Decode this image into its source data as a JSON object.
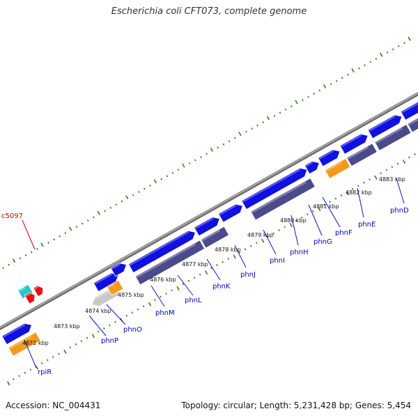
{
  "title": "Escherichia coli CFT073, complete genome",
  "footer": {
    "accession": "Accession: NC_004431",
    "summary": "Topology: circular; Length: 5,231,428 bp; Genes: 5,454"
  },
  "colors": {
    "backbone": "#8c8c8c",
    "gene_forward": "#1010e0",
    "gene_reverse": "#4a4a8c",
    "gene_orange": "#f39a1a",
    "gene_grey": "#c8c8c8",
    "gene_cyan": "#22c8cc",
    "gene_red": "#e81010",
    "tick": "#2e7d1a",
    "gene_label": "#0000cc",
    "red_label": "#cc0000"
  },
  "ticks": [
    "4872 kbp",
    "4873 kbp",
    "4874 kbp",
    "4875 kbp",
    "4876 kbp",
    "4877 kbp",
    "4878 kbp",
    "4879 kbp",
    "4880 kbp",
    "4881 kbp",
    "4882 kbp",
    "4883 kbp"
  ],
  "genes": [
    "rpiR",
    "phnP",
    "phnO",
    "phnM",
    "phnL",
    "phnK",
    "phnJ",
    "phnI",
    "phnH",
    "phnG",
    "phnF",
    "phnE",
    "phnD"
  ],
  "outer_label": "c5097"
}
